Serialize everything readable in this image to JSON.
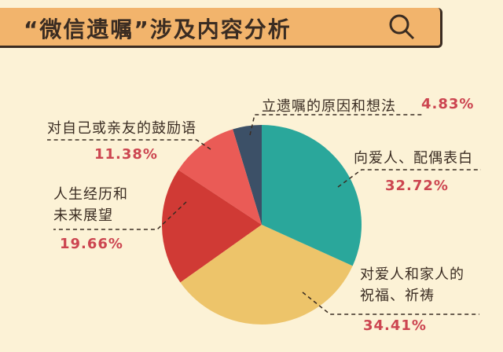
{
  "chart_data": {
    "type": "pie",
    "title": "“微信遗嘱”涉及内容分析",
    "categories": [
      "向爱人、配偶表白",
      "对爱人和家人的\n祝福、祈祷",
      "人生经历和\n未来展望",
      "对自己或亲友的鼓励语",
      "立遗嘱的原因和想法"
    ],
    "values": [
      32.72,
      34.41,
      19.66,
      11.38,
      4.83
    ],
    "value_labels": [
      "32.72%",
      "34.41%",
      "19.66%",
      "11.38%",
      "4.83%"
    ],
    "colors": [
      "#2aa79b",
      "#edc46a",
      "#d03a35",
      "#ea5b56",
      "#3c5067"
    ]
  }
}
